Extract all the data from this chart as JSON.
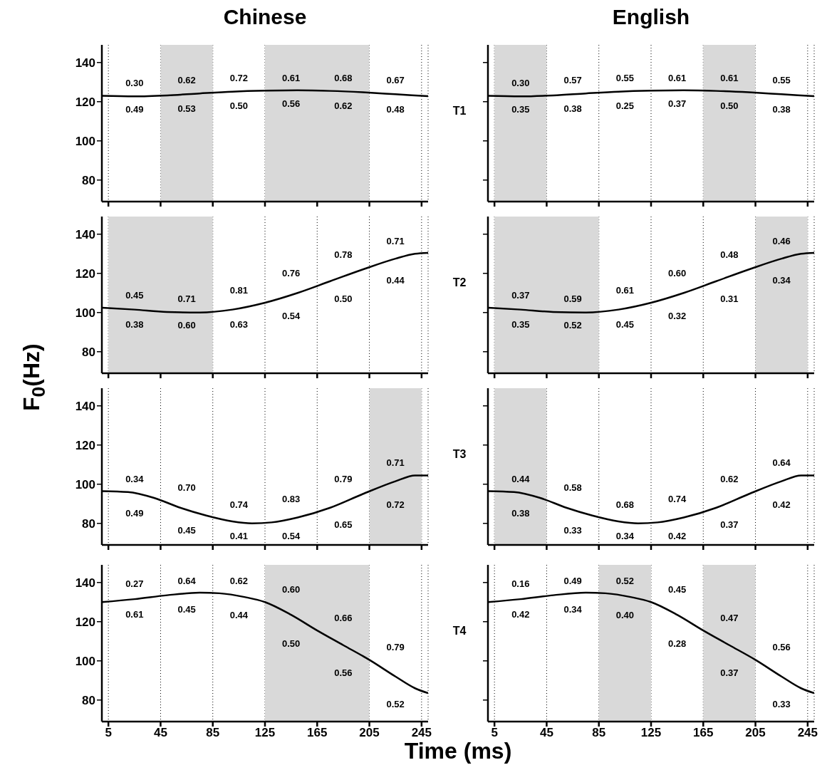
{
  "chart_data": [
    {
      "type": "line",
      "title": "Chinese",
      "x": [
        0,
        25,
        50,
        75,
        100,
        125,
        150,
        175,
        200,
        225,
        250
      ],
      "series": [
        {
          "color": "#000000",
          "values": [
            123,
            122.7,
            123.2,
            124.2,
            125.1,
            125.6,
            125.8,
            125.5,
            124.8,
            123.8,
            122.8
          ]
        }
      ],
      "xlim": [
        0,
        250
      ],
      "ylim": [
        69,
        149
      ],
      "xticks": [
        5,
        45,
        85,
        125,
        165,
        205,
        245
      ],
      "yticks": [
        80,
        100,
        120,
        140
      ],
      "grid": "x",
      "marker": "none",
      "line_style": "solid",
      "tick_labels": "y",
      "bands": [
        {
          "axis": "x",
          "from": 45,
          "to": 85,
          "color": "#d9d9d9"
        },
        {
          "axis": "x",
          "from": 125,
          "to": 205,
          "color": "#d9d9d9"
        }
      ],
      "annotations": [
        "0.30",
        "0.62",
        "0.72",
        "0.61",
        "0.68",
        "0.67",
        "0.49",
        "0.53",
        "0.50",
        "0.56",
        "0.62",
        "0.48"
      ]
    },
    {
      "type": "line",
      "title": "English",
      "x": [
        0,
        25,
        50,
        75,
        100,
        125,
        150,
        175,
        200,
        225,
        250
      ],
      "series": [
        {
          "color": "#000000",
          "values": [
            123,
            122.7,
            123.2,
            124.2,
            125.1,
            125.6,
            125.8,
            125.5,
            124.8,
            123.8,
            122.8
          ]
        }
      ],
      "xlim": [
        0,
        250
      ],
      "ylim": [
        69,
        149
      ],
      "xticks": [
        5,
        45,
        85,
        125,
        165,
        205,
        245
      ],
      "yticks": [
        80,
        100,
        120,
        140
      ],
      "grid": "x",
      "marker": "none",
      "line_style": "solid",
      "tick_labels": false,
      "bands": [
        {
          "axis": "x",
          "from": 5,
          "to": 45,
          "color": "#d9d9d9"
        },
        {
          "axis": "x",
          "from": 165,
          "to": 205,
          "color": "#d9d9d9"
        }
      ],
      "ylabel": "T1",
      "annotations": [
        "0.30",
        "0.57",
        "0.55",
        "0.61",
        "0.61",
        "0.55",
        "0.35",
        "0.38",
        "0.25",
        "0.37",
        "0.50",
        "0.38"
      ]
    },
    {
      "type": "line",
      "x": [
        0,
        25,
        50,
        75,
        100,
        125,
        150,
        175,
        200,
        225,
        240,
        250
      ],
      "series": [
        {
          "color": "#000000",
          "values": [
            102.5,
            101.5,
            100.3,
            100,
            101.5,
            105,
            110,
            116,
            122,
            127.5,
            130,
            130.5
          ]
        }
      ],
      "xlim": [
        0,
        250
      ],
      "ylim": [
        69,
        149
      ],
      "xticks": [
        5,
        45,
        85,
        125,
        165,
        205,
        245
      ],
      "yticks": [
        80,
        100,
        120,
        140
      ],
      "grid": "x",
      "marker": "none",
      "line_style": "solid",
      "tick_labels": "y",
      "bands": [
        {
          "axis": "x",
          "from": 5,
          "to": 85,
          "color": "#d9d9d9"
        }
      ],
      "annotations": [
        "0.45",
        "0.71",
        "0.81",
        "0.76",
        "0.78",
        "0.71",
        "0.38",
        "0.60",
        "0.63",
        "0.54",
        "0.50",
        "0.44"
      ]
    },
    {
      "type": "line",
      "x": [
        0,
        25,
        50,
        75,
        100,
        125,
        150,
        175,
        200,
        225,
        240,
        250
      ],
      "series": [
        {
          "color": "#000000",
          "values": [
            102.5,
            101.5,
            100.3,
            100,
            101.5,
            105,
            110,
            116,
            122,
            127.5,
            130,
            130.5
          ]
        }
      ],
      "xlim": [
        0,
        250
      ],
      "ylim": [
        69,
        149
      ],
      "xticks": [
        5,
        45,
        85,
        125,
        165,
        205,
        245
      ],
      "yticks": [
        80,
        100,
        120,
        140
      ],
      "grid": "x",
      "marker": "none",
      "line_style": "solid",
      "tick_labels": false,
      "bands": [
        {
          "axis": "x",
          "from": 5,
          "to": 85,
          "color": "#d9d9d9"
        },
        {
          "axis": "x",
          "from": 205,
          "to": 245,
          "color": "#d9d9d9"
        }
      ],
      "ylabel": "T2",
      "annotations": [
        "0.37",
        "0.59",
        "0.61",
        "0.60",
        "0.48",
        "0.46",
        "0.35",
        "0.52",
        "0.45",
        "0.32",
        "0.31",
        "0.34"
      ]
    },
    {
      "type": "line",
      "ylabel": "F$_{0}$(Hz)",
      "x": [
        0,
        20,
        40,
        60,
        80,
        100,
        115,
        130,
        150,
        175,
        200,
        225,
        240,
        250
      ],
      "series": [
        {
          "color": "#000000",
          "values": [
            96.5,
            96,
            93,
            88,
            84,
            81,
            80,
            80.5,
            83,
            88,
            95,
            101.5,
            104.5,
            104.5
          ]
        }
      ],
      "xlim": [
        0,
        250
      ],
      "ylim": [
        69,
        149
      ],
      "xticks": [
        5,
        45,
        85,
        125,
        165,
        205,
        245
      ],
      "yticks": [
        80,
        100,
        120,
        140
      ],
      "grid": "x",
      "marker": "none",
      "line_style": "solid",
      "tick_labels": "y",
      "bands": [
        {
          "axis": "x",
          "from": 205,
          "to": 245,
          "color": "#d9d9d9"
        }
      ],
      "annotations": [
        "0.34",
        "0.70",
        "0.74",
        "0.83",
        "0.79",
        "0.71",
        "0.49",
        "0.45",
        "0.41",
        "0.54",
        "0.65",
        "0.72"
      ]
    },
    {
      "type": "line",
      "x": [
        0,
        20,
        40,
        60,
        80,
        100,
        115,
        130,
        150,
        175,
        200,
        225,
        240,
        250
      ],
      "series": [
        {
          "color": "#000000",
          "values": [
            96.5,
            96,
            93,
            88,
            84,
            81,
            80,
            80.5,
            83,
            88,
            95,
            101.5,
            104.5,
            104.5
          ]
        }
      ],
      "xlim": [
        0,
        250
      ],
      "ylim": [
        69,
        149
      ],
      "xticks": [
        5,
        45,
        85,
        125,
        165,
        205,
        245
      ],
      "yticks": [
        80,
        100,
        120,
        140
      ],
      "grid": "x",
      "marker": "none",
      "line_style": "solid",
      "tick_labels": false,
      "bands": [
        {
          "axis": "x",
          "from": 5,
          "to": 45,
          "color": "#d9d9d9"
        }
      ],
      "ylabel": "T3",
      "annotations": [
        "0.44",
        "0.58",
        "0.68",
        "0.74",
        "0.62",
        "0.64",
        "0.38",
        "0.33",
        "0.34",
        "0.42",
        "0.37",
        "0.42"
      ]
    },
    {
      "type": "line",
      "xlabel": "Time (ms)",
      "x": [
        0,
        25,
        50,
        75,
        90,
        110,
        125,
        145,
        165,
        185,
        205,
        225,
        240,
        250
      ],
      "series": [
        {
          "color": "#000000",
          "values": [
            130,
            131.5,
            133.5,
            134.8,
            134.5,
            132.5,
            130,
            123.5,
            115.5,
            108,
            100.5,
            92,
            86,
            83.5
          ]
        }
      ],
      "xlim": [
        0,
        250
      ],
      "ylim": [
        69,
        149
      ],
      "xticks": [
        5,
        45,
        85,
        125,
        165,
        205,
        245
      ],
      "yticks": [
        80,
        100,
        120,
        140
      ],
      "grid": "x",
      "marker": "none",
      "line_style": "solid",
      "bands": [
        {
          "axis": "x",
          "from": 125,
          "to": 205,
          "color": "#d9d9d9"
        }
      ],
      "annotations": [
        "0.27",
        "0.64",
        "0.62",
        "0.60",
        "0.66",
        "0.79",
        "0.61",
        "0.45",
        "0.44",
        "0.50",
        "0.56",
        "0.52"
      ]
    },
    {
      "type": "line",
      "x": [
        0,
        25,
        50,
        75,
        90,
        110,
        125,
        145,
        165,
        185,
        205,
        225,
        240,
        250
      ],
      "series": [
        {
          "color": "#000000",
          "values": [
            130,
            131.5,
            133.5,
            134.8,
            134.5,
            132.5,
            130,
            123.5,
            115.5,
            108,
            100.5,
            92,
            86,
            83.5
          ]
        }
      ],
      "xlim": [
        0,
        250
      ],
      "ylim": [
        69,
        149
      ],
      "xticks": [
        5,
        45,
        85,
        125,
        165,
        205,
        245
      ],
      "yticks": [
        80,
        100,
        120,
        140
      ],
      "grid": "x",
      "marker": "none",
      "line_style": "solid",
      "tick_labels": "x",
      "bands": [
        {
          "axis": "x",
          "from": 85,
          "to": 125,
          "color": "#d9d9d9"
        },
        {
          "axis": "x",
          "from": 165,
          "to": 205,
          "color": "#d9d9d9"
        }
      ],
      "ylabel": "T4",
      "annotations": [
        "0.16",
        "0.49",
        "0.52",
        "0.45",
        "0.47",
        "0.56",
        "0.42",
        "0.34",
        "0.40",
        "0.28",
        "0.37",
        "0.33"
      ]
    }
  ]
}
